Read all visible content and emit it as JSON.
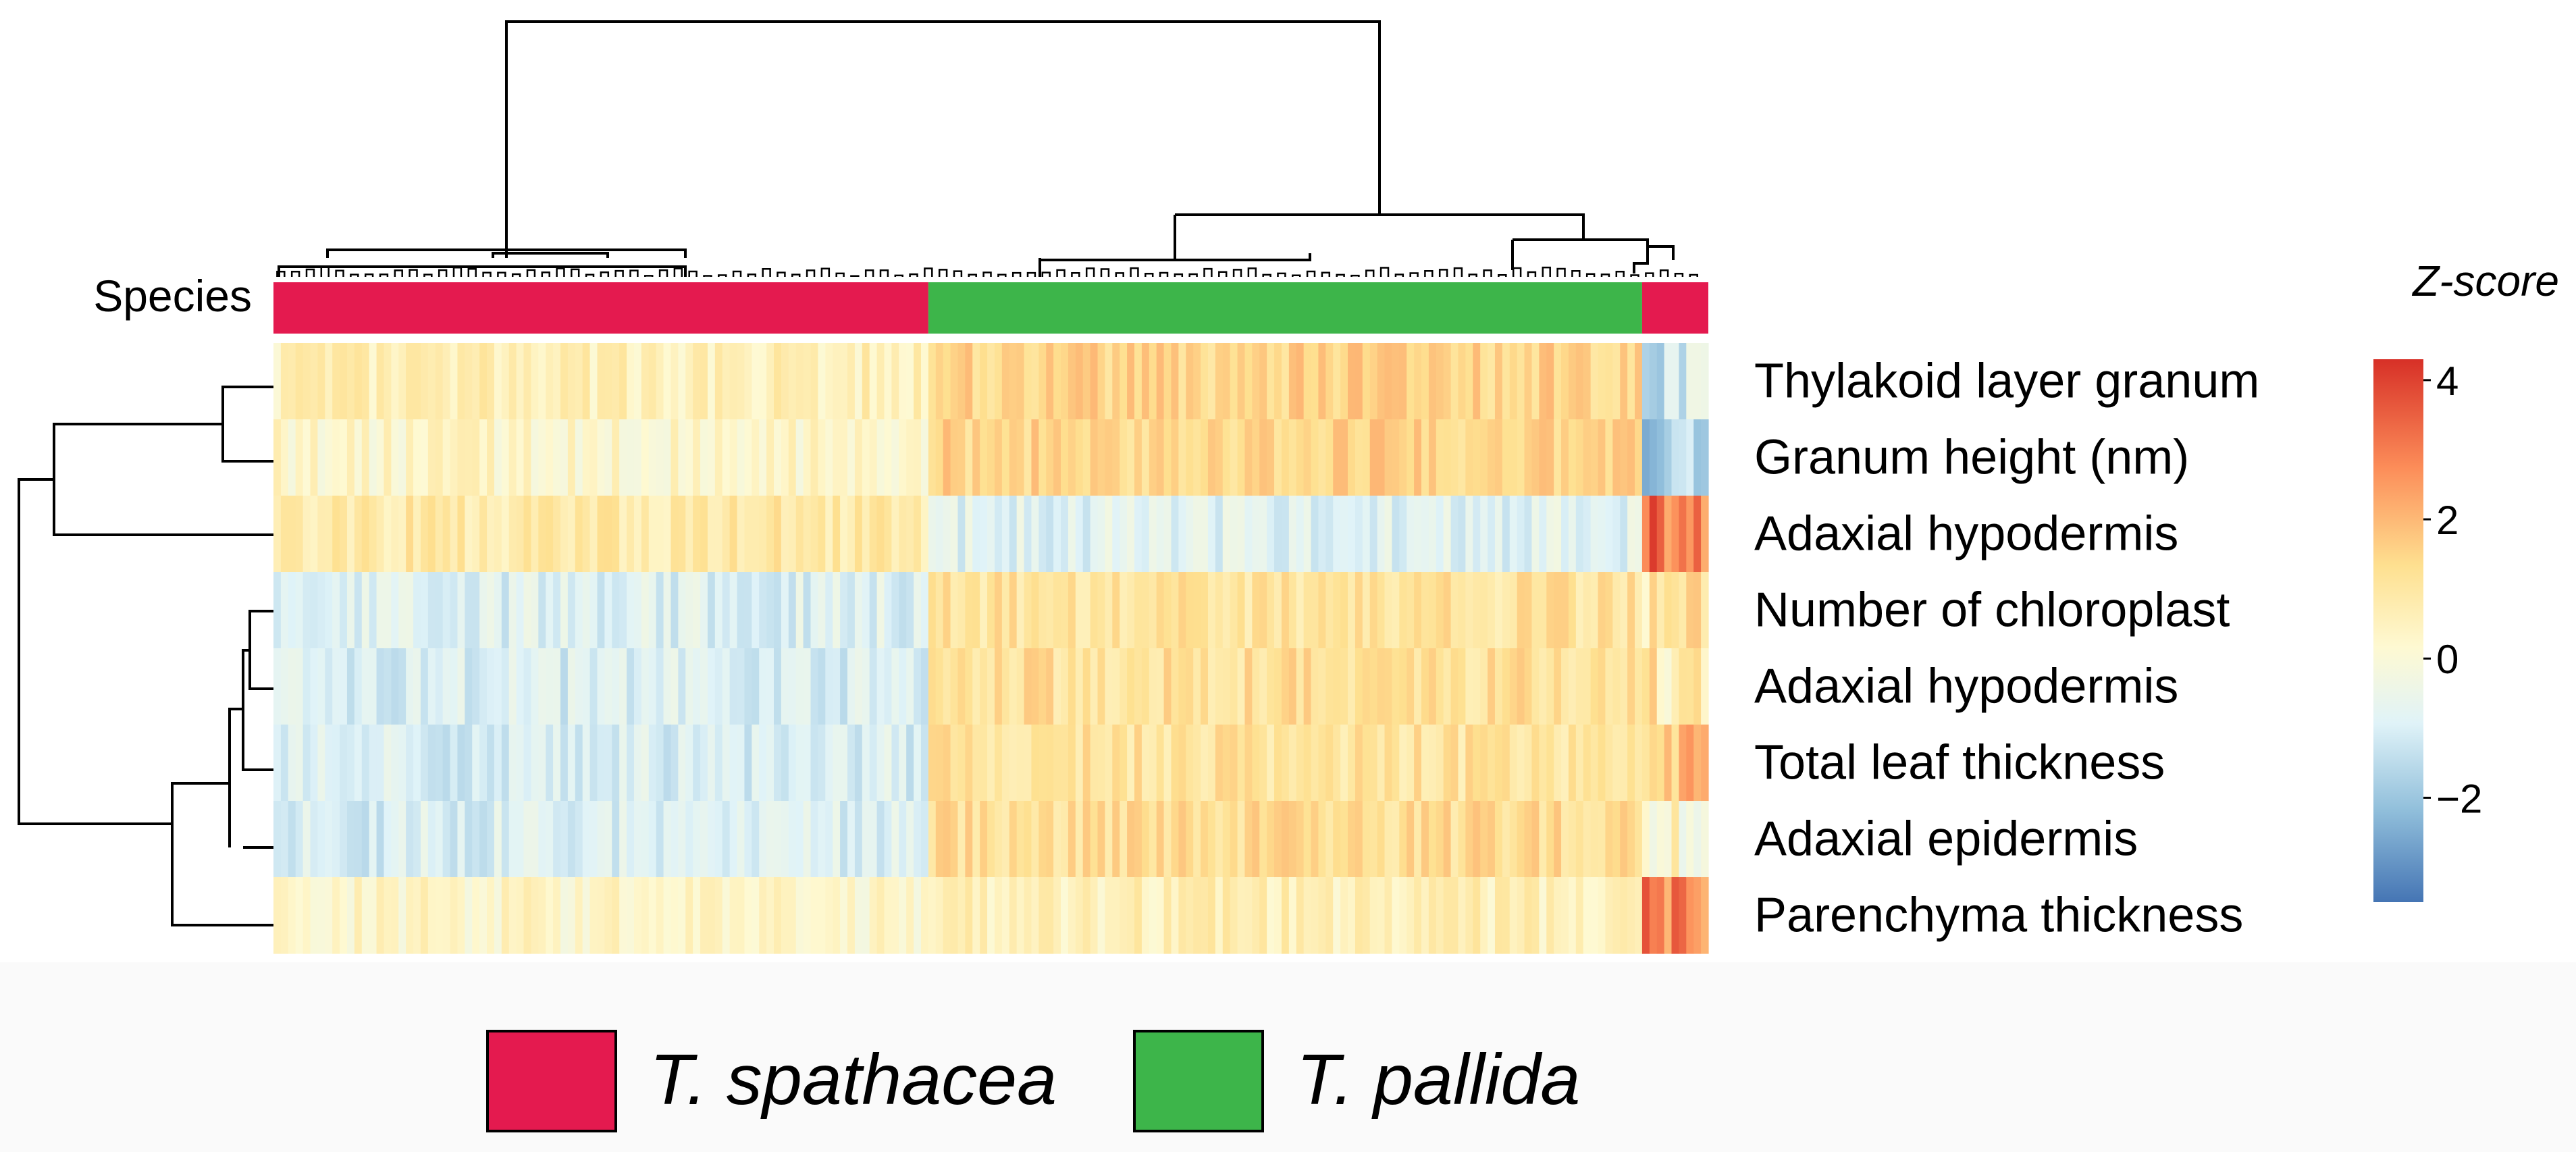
{
  "chart_data": {
    "type": "heatmap",
    "title": "",
    "annotation_label": "Species",
    "rows": [
      "Thylakoid layer granum",
      "Granum height (nm)",
      "Adaxial hypodermis",
      "Number of chloroplast",
      "Adaxial hypodermis",
      "Total leaf thickness",
      "Adaxial epidermis",
      "Parenchyma thickness"
    ],
    "column_groups": [
      {
        "species": "T. spathacea",
        "n_columns": 89
      },
      {
        "species": "T. pallida",
        "n_columns": 97
      },
      {
        "species": "T. spathacea",
        "n_columns": 9
      }
    ],
    "group_mean_zscores": {
      "T. spathacea (main)": [
        0.6,
        0.3,
        0.9,
        -0.9,
        -1.0,
        -1.0,
        -1.0,
        0.3
      ],
      "T. pallida": [
        1.5,
        1.5,
        -0.8,
        1.1,
        1.2,
        1.1,
        1.3,
        0.6
      ],
      "T. spathacea (minor)": [
        -1.3,
        -1.7,
        3.2,
        0.8,
        0.8,
        1.8,
        0.3,
        3.0
      ]
    },
    "legend": {
      "title": "Z-score",
      "ticks": [
        "4",
        "2",
        "0",
        "−2"
      ],
      "range": [
        -3.5,
        4.3
      ],
      "colors": [
        "#4575b4",
        "#91bfdb",
        "#e0f3f8",
        "#fef9d2",
        "#fee090",
        "#fc8d59",
        "#d73027"
      ]
    },
    "species_legend": [
      {
        "label": "T. spathacea",
        "color": "#e41a4f"
      },
      {
        "label": "T. pallida",
        "color": "#3db54a"
      }
    ]
  }
}
